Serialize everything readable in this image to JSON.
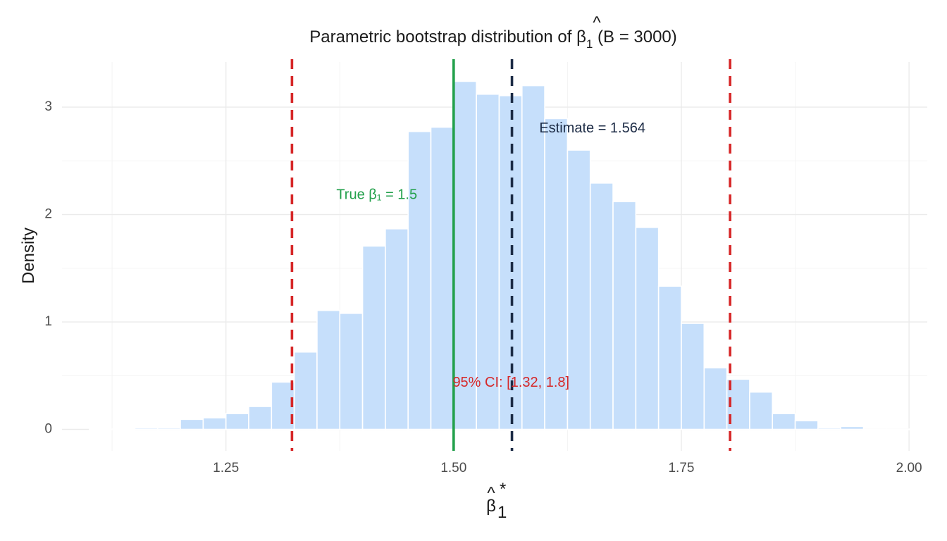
{
  "chart_data": {
    "type": "bar",
    "title": {
      "prefix": "Parametric bootstrap distribution of ",
      "symbol": "β",
      "hat": "^",
      "subscript": "1",
      "suffix": " (B = 3000)"
    },
    "xlabel": {
      "symbol": "β",
      "hat": "^",
      "subscript": "1",
      "superscript": "*"
    },
    "ylabel": "Density",
    "xlim": [
      1.07,
      2.02
    ],
    "ylim": [
      -0.2,
      3.42
    ],
    "x_ticks": [
      1.25,
      1.5,
      1.75,
      2.0
    ],
    "x_tick_labels": [
      "1.25",
      "1.50",
      "1.75",
      "2.00"
    ],
    "y_ticks": [
      0,
      1,
      2,
      3
    ],
    "y_tick_labels": [
      "0",
      "1",
      "2",
      "3"
    ],
    "grid": true,
    "bin_width": 0.025,
    "bins": [
      {
        "x0": 1.1,
        "x1": 1.125,
        "density": 0.003
      },
      {
        "x0": 1.125,
        "x1": 1.15,
        "density": 0.003
      },
      {
        "x0": 1.15,
        "x1": 1.175,
        "density": 0.013
      },
      {
        "x0": 1.175,
        "x1": 1.2,
        "density": 0.013
      },
      {
        "x0": 1.2,
        "x1": 1.225,
        "density": 0.093
      },
      {
        "x0": 1.225,
        "x1": 1.25,
        "density": 0.107
      },
      {
        "x0": 1.25,
        "x1": 1.275,
        "density": 0.147
      },
      {
        "x0": 1.275,
        "x1": 1.3,
        "density": 0.213
      },
      {
        "x0": 1.3,
        "x1": 1.325,
        "density": 0.44
      },
      {
        "x0": 1.325,
        "x1": 1.35,
        "density": 0.72
      },
      {
        "x0": 1.35,
        "x1": 1.375,
        "density": 1.107
      },
      {
        "x0": 1.375,
        "x1": 1.4,
        "density": 1.08
      },
      {
        "x0": 1.4,
        "x1": 1.425,
        "density": 1.707
      },
      {
        "x0": 1.425,
        "x1": 1.45,
        "density": 1.867
      },
      {
        "x0": 1.45,
        "x1": 1.475,
        "density": 2.773
      },
      {
        "x0": 1.475,
        "x1": 1.5,
        "density": 2.813
      },
      {
        "x0": 1.5,
        "x1": 1.525,
        "density": 3.24
      },
      {
        "x0": 1.525,
        "x1": 1.55,
        "density": 3.12
      },
      {
        "x0": 1.55,
        "x1": 1.575,
        "density": 3.107
      },
      {
        "x0": 1.575,
        "x1": 1.6,
        "density": 3.2
      },
      {
        "x0": 1.6,
        "x1": 1.625,
        "density": 2.893
      },
      {
        "x0": 1.625,
        "x1": 1.65,
        "density": 2.6
      },
      {
        "x0": 1.65,
        "x1": 1.675,
        "density": 2.293
      },
      {
        "x0": 1.675,
        "x1": 1.7,
        "density": 2.12
      },
      {
        "x0": 1.7,
        "x1": 1.725,
        "density": 1.88
      },
      {
        "x0": 1.725,
        "x1": 1.75,
        "density": 1.333
      },
      {
        "x0": 1.75,
        "x1": 1.775,
        "density": 0.987
      },
      {
        "x0": 1.775,
        "x1": 1.8,
        "density": 0.573
      },
      {
        "x0": 1.8,
        "x1": 1.825,
        "density": 0.467
      },
      {
        "x0": 1.825,
        "x1": 1.85,
        "density": 0.347
      },
      {
        "x0": 1.85,
        "x1": 1.875,
        "density": 0.147
      },
      {
        "x0": 1.875,
        "x1": 1.9,
        "density": 0.08
      },
      {
        "x0": 1.9,
        "x1": 1.925,
        "density": 0.013
      },
      {
        "x0": 1.925,
        "x1": 1.95,
        "density": 0.027
      },
      {
        "x0": 1.95,
        "x1": 1.975,
        "density": 0.0
      },
      {
        "x0": 1.975,
        "x1": 2.0,
        "density": 0.0
      },
      {
        "x0": 2.0,
        "x1": 2.025,
        "density": 0.003
      }
    ],
    "bar_color": "#c6dffb",
    "vlines": [
      {
        "name": "ci-lower",
        "x": 1.3225,
        "color": "#d62728",
        "style": "dashed"
      },
      {
        "name": "ci-upper",
        "x": 1.8035,
        "color": "#d62728",
        "style": "dashed"
      },
      {
        "name": "true-value",
        "x": 1.5,
        "color": "#22a04b",
        "style": "solid"
      },
      {
        "name": "estimate",
        "x": 1.564,
        "color": "#1c2b45",
        "style": "dashed"
      }
    ],
    "annotations": [
      {
        "name": "estimate-label",
        "text": "Estimate = 1.564",
        "x": 1.594,
        "y": 2.8,
        "color": "#1c2b45",
        "anchor": "start"
      },
      {
        "name": "true-label",
        "text": "True β₁ = 1.5",
        "x": 1.46,
        "y": 2.18,
        "color": "#22a04b",
        "anchor": "end"
      },
      {
        "name": "ci-label",
        "text": "95% CI: [1.32, 1.8]",
        "x": 1.563,
        "y": 0.43,
        "color": "#d62728",
        "anchor": "middle"
      }
    ]
  }
}
